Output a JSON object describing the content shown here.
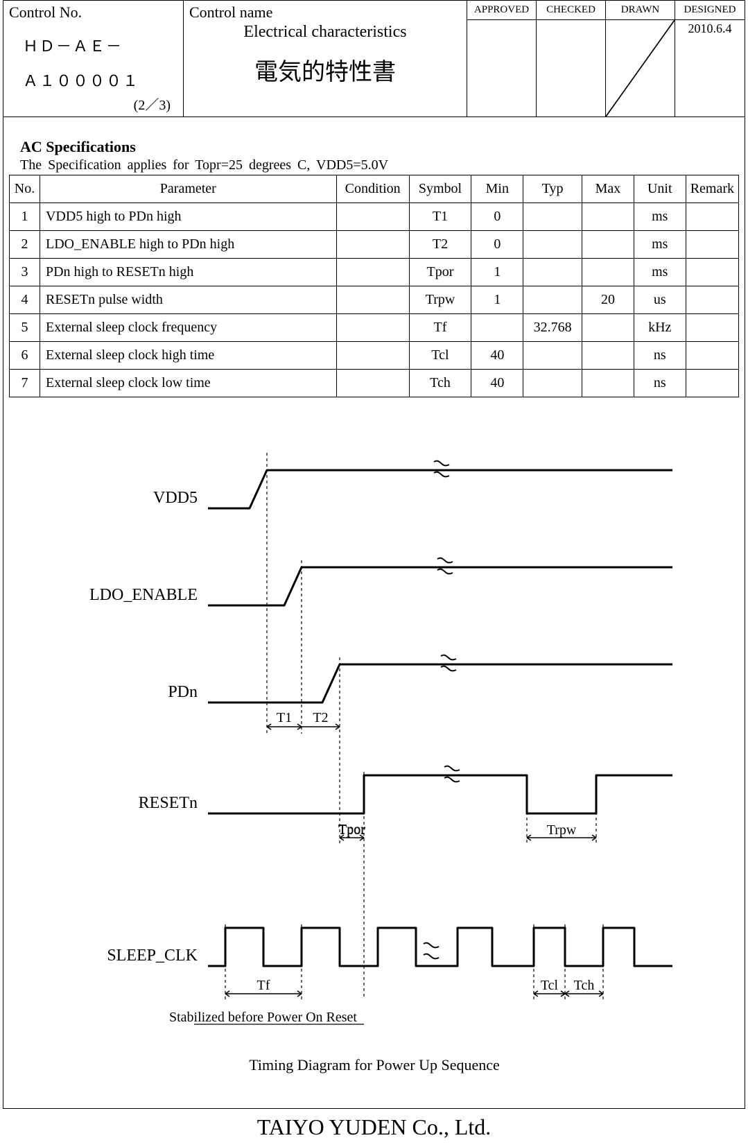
{
  "header": {
    "control_no_label": "Control No.",
    "control_no_line1": "ＨＤ－ＡＥ－",
    "control_no_line2": "Ａ１００００１",
    "page_num": "(2／3)",
    "control_name_label": "Control name",
    "title_en": "Electrical characteristics",
    "title_jp": "電気的特性書",
    "approved": "APPROVED",
    "checked": "CHECKED",
    "drawn": "DRAWN",
    "designed": "DESIGNED",
    "designed_date": "2010.6.4"
  },
  "spec": {
    "title": "AC Specifications",
    "condition_line": "The  Specification  applies  for  Topr=25  degrees  C,  VDD5=5.0V",
    "headers": {
      "no": "No.",
      "param": "Parameter",
      "cond": "Condition",
      "sym": "Symbol",
      "min": "Min",
      "typ": "Typ",
      "max": "Max",
      "unit": "Unit",
      "remark": "Remark"
    },
    "rows": [
      {
        "no": "1",
        "param": "VDD5 high to PDn high",
        "cond": "",
        "sym": "T1",
        "min": "0",
        "typ": "",
        "max": "",
        "unit": "ms",
        "remark": ""
      },
      {
        "no": "2",
        "param": "LDO_ENABLE high to PDn high",
        "cond": "",
        "sym": "T2",
        "min": "0",
        "typ": "",
        "max": "",
        "unit": "ms",
        "remark": ""
      },
      {
        "no": "3",
        "param": "PDn high to RESETn high",
        "cond": "",
        "sym": "Tpor",
        "min": "1",
        "typ": "",
        "max": "",
        "unit": "ms",
        "remark": ""
      },
      {
        "no": "4",
        "param": "RESETn pulse width",
        "cond": "",
        "sym": "Trpw",
        "min": "1",
        "typ": "",
        "max": "20",
        "unit": "us",
        "remark": ""
      },
      {
        "no": "5",
        "param": "External sleep clock frequency",
        "cond": "",
        "sym": "Tf",
        "min": "",
        "typ": "32.768",
        "max": "",
        "unit": "kHz",
        "remark": ""
      },
      {
        "no": "6",
        "param": "External sleep clock high time",
        "cond": "",
        "sym": "Tcl",
        "min": "40",
        "typ": "",
        "max": "",
        "unit": "ns",
        "remark": ""
      },
      {
        "no": "7",
        "param": "External sleep clock low time",
        "cond": "",
        "sym": "Tch",
        "min": "40",
        "typ": "",
        "max": "",
        "unit": "ns",
        "remark": ""
      }
    ]
  },
  "diagram": {
    "labels": {
      "vdd5": "VDD5",
      "ldo": "LDO_ENABLE",
      "pdn": "PDn",
      "resetn": "RESETn",
      "sleep": "SLEEP_CLK",
      "t1": "T1",
      "t2": "T2",
      "tpor": "Tpor",
      "trpw": "Trpw",
      "tf": "Tf",
      "tcl": "Tcl",
      "tch": "Tch",
      "stabilized": "Stabilized before Power On Reset",
      "caption": "Timing Diagram for Power Up Sequence"
    },
    "style": {
      "stroke_color": "#000000",
      "signal_stroke_width": 3,
      "dash_stroke_width": 1.2,
      "dash_pattern": "4,4",
      "font_size_label": 24,
      "font_size_small": 20,
      "font_size_caption": 22
    }
  },
  "footer": "TAIYO YUDEN Co., Ltd."
}
